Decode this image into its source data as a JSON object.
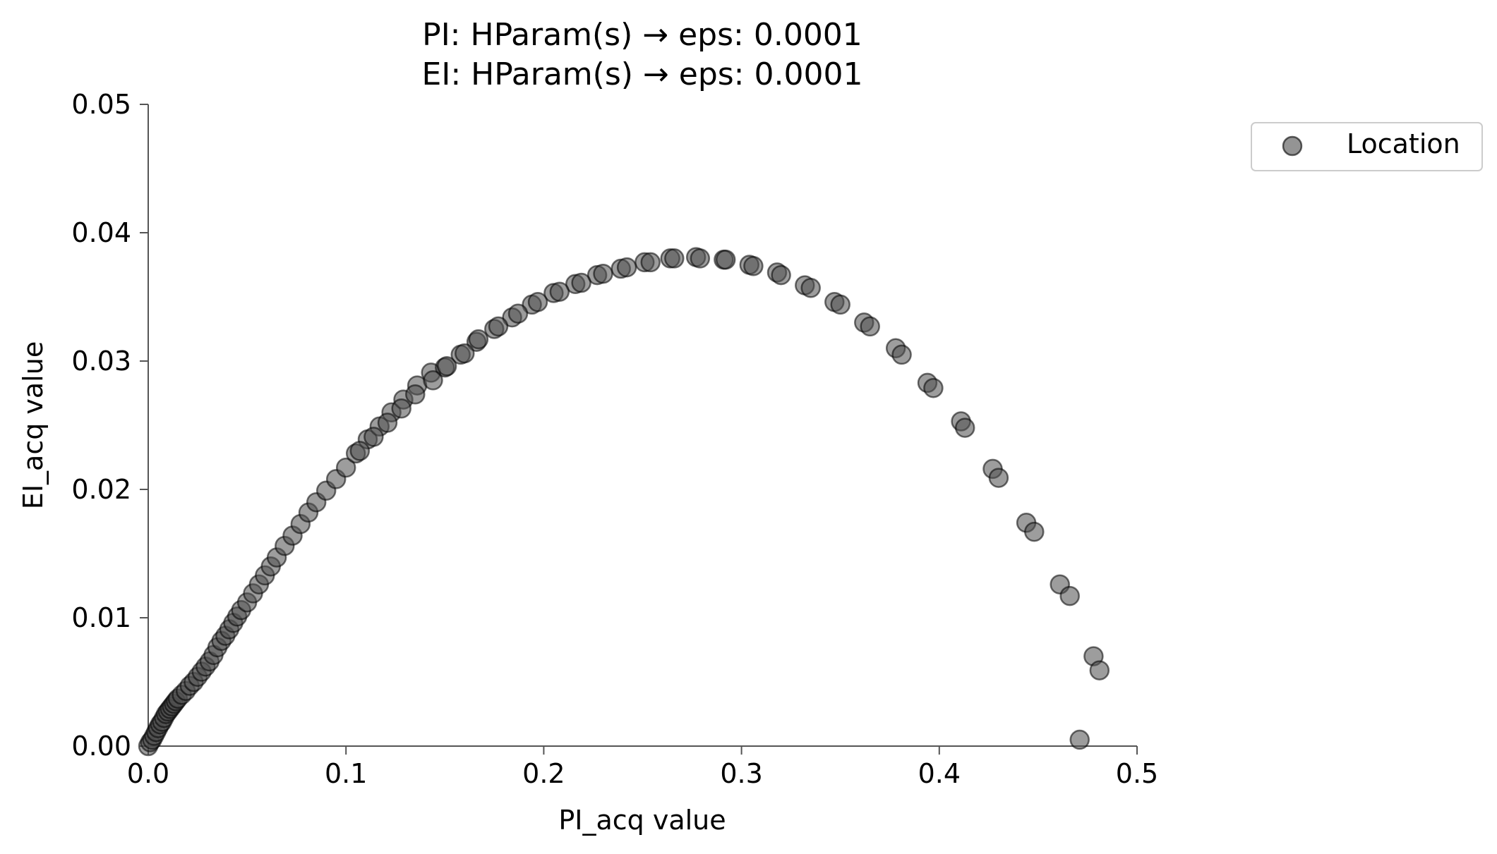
{
  "chart_data": {
    "type": "scatter",
    "title_lines": [
      "PI: HParam(s) → eps: 0.0001",
      "EI: HParam(s) → eps: 0.0001"
    ],
    "xlabel": "PI_acq value",
    "ylabel": "EI_acq value",
    "xlim": [
      0,
      0.5
    ],
    "ylim": [
      0,
      0.05
    ],
    "x_ticks": [
      "0.0",
      "0.1",
      "0.2",
      "0.3",
      "0.4",
      "0.5"
    ],
    "y_ticks": [
      "0.00",
      "0.01",
      "0.02",
      "0.03",
      "0.04",
      "0.05"
    ],
    "grid": false,
    "legend": {
      "position": "outside-top-right",
      "entries": [
        "Location"
      ]
    },
    "marker_color": "#4d4d4d",
    "series": [
      {
        "name": "Location",
        "points": [
          [
            0.0,
            0.0
          ],
          [
            0.001,
            0.0003
          ],
          [
            0.002,
            0.0005
          ],
          [
            0.003,
            0.0008
          ],
          [
            0.004,
            0.0011
          ],
          [
            0.005,
            0.0014
          ],
          [
            0.006,
            0.0017
          ],
          [
            0.007,
            0.0019
          ],
          [
            0.008,
            0.0022
          ],
          [
            0.009,
            0.0025
          ],
          [
            0.01,
            0.0027
          ],
          [
            0.011,
            0.0029
          ],
          [
            0.012,
            0.0031
          ],
          [
            0.013,
            0.0033
          ],
          [
            0.014,
            0.0035
          ],
          [
            0.015,
            0.0037
          ],
          [
            0.017,
            0.004
          ],
          [
            0.019,
            0.0043
          ],
          [
            0.021,
            0.0047
          ],
          [
            0.023,
            0.005
          ],
          [
            0.025,
            0.0054
          ],
          [
            0.027,
            0.0058
          ],
          [
            0.029,
            0.0062
          ],
          [
            0.031,
            0.0066
          ],
          [
            0.033,
            0.0071
          ],
          [
            0.035,
            0.0077
          ],
          [
            0.037,
            0.0082
          ],
          [
            0.039,
            0.0086
          ],
          [
            0.041,
            0.0091
          ],
          [
            0.043,
            0.0096
          ],
          [
            0.045,
            0.0101
          ],
          [
            0.047,
            0.0106
          ],
          [
            0.05,
            0.0112
          ],
          [
            0.053,
            0.0119
          ],
          [
            0.056,
            0.0126
          ],
          [
            0.059,
            0.0133
          ],
          [
            0.062,
            0.014
          ],
          [
            0.065,
            0.0147
          ],
          [
            0.069,
            0.0156
          ],
          [
            0.073,
            0.0164
          ],
          [
            0.077,
            0.0173
          ],
          [
            0.081,
            0.0182
          ],
          [
            0.085,
            0.019
          ],
          [
            0.09,
            0.0199
          ],
          [
            0.095,
            0.0208
          ],
          [
            0.1,
            0.0217
          ],
          [
            0.105,
            0.0228
          ],
          [
            0.111,
            0.0239
          ],
          [
            0.117,
            0.0249
          ],
          [
            0.123,
            0.026
          ],
          [
            0.129,
            0.027
          ],
          [
            0.136,
            0.0281
          ],
          [
            0.143,
            0.0291
          ],
          [
            0.15,
            0.0295
          ],
          [
            0.158,
            0.0305
          ],
          [
            0.166,
            0.0315
          ],
          [
            0.175,
            0.0325
          ],
          [
            0.184,
            0.0334
          ],
          [
            0.194,
            0.0344
          ],
          [
            0.205,
            0.0353
          ],
          [
            0.216,
            0.036
          ],
          [
            0.227,
            0.0367
          ],
          [
            0.239,
            0.0372
          ],
          [
            0.251,
            0.0377
          ],
          [
            0.264,
            0.038
          ],
          [
            0.277,
            0.0381
          ],
          [
            0.291,
            0.0379
          ],
          [
            0.304,
            0.0375
          ],
          [
            0.318,
            0.0369
          ],
          [
            0.332,
            0.0359
          ],
          [
            0.347,
            0.0346
          ],
          [
            0.362,
            0.033
          ],
          [
            0.378,
            0.031
          ],
          [
            0.394,
            0.0283
          ],
          [
            0.411,
            0.0253
          ],
          [
            0.427,
            0.0216
          ],
          [
            0.444,
            0.0174
          ],
          [
            0.461,
            0.0126
          ],
          [
            0.478,
            0.007
          ],
          [
            0.471,
            0.0005
          ],
          [
            0.466,
            0.0117
          ],
          [
            0.448,
            0.0167
          ],
          [
            0.43,
            0.0209
          ],
          [
            0.413,
            0.0248
          ],
          [
            0.397,
            0.0279
          ],
          [
            0.381,
            0.0305
          ],
          [
            0.365,
            0.0327
          ],
          [
            0.35,
            0.0344
          ],
          [
            0.335,
            0.0357
          ],
          [
            0.32,
            0.0367
          ],
          [
            0.306,
            0.0374
          ],
          [
            0.292,
            0.0379
          ],
          [
            0.279,
            0.038
          ],
          [
            0.266,
            0.038
          ],
          [
            0.254,
            0.0377
          ],
          [
            0.242,
            0.0373
          ],
          [
            0.23,
            0.0368
          ],
          [
            0.219,
            0.0361
          ],
          [
            0.208,
            0.0354
          ],
          [
            0.197,
            0.0346
          ],
          [
            0.187,
            0.0337
          ],
          [
            0.177,
            0.0327
          ],
          [
            0.167,
            0.0317
          ],
          [
            0.16,
            0.0306
          ],
          [
            0.151,
            0.0296
          ],
          [
            0.144,
            0.0285
          ],
          [
            0.135,
            0.0274
          ],
          [
            0.128,
            0.0263
          ],
          [
            0.121,
            0.0252
          ],
          [
            0.114,
            0.0241
          ],
          [
            0.107,
            0.023
          ],
          [
            0.481,
            0.0059
          ]
        ]
      }
    ]
  }
}
